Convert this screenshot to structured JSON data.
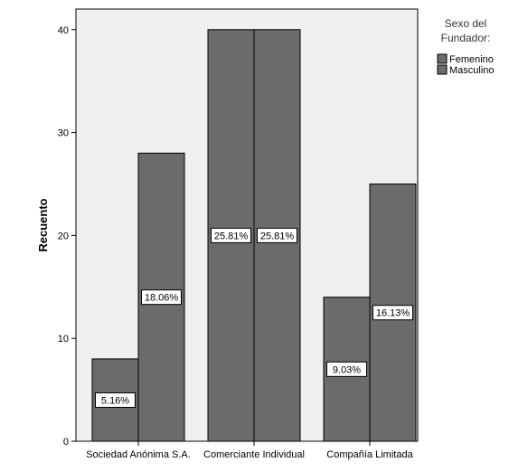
{
  "chart_data": {
    "type": "bar",
    "categories": [
      "Sociedad Anónima S.A.",
      "Comerciante Individual",
      "Compañía Limitada"
    ],
    "series": [
      {
        "name": "Femenino",
        "values": [
          8,
          40,
          14
        ],
        "labels": [
          "5.16%",
          "25.81%",
          "9.03%"
        ]
      },
      {
        "name": "Masculino",
        "values": [
          28,
          40,
          25
        ],
        "labels": [
          "18.06%",
          "25.81%",
          "16.13%"
        ]
      }
    ],
    "ylabel": "Recuento",
    "xlabel": "",
    "ylim": [
      0,
      42
    ],
    "yticks": [
      0,
      10,
      20,
      30,
      40
    ],
    "legend": {
      "title_lines": [
        "Sexo del",
        "Fundador:"
      ],
      "placement": "right-top"
    },
    "grid": false,
    "colors": {
      "plot_bg": "#f0f0f0",
      "bar_fill": "#6b6b6b",
      "bar_stroke": "#000000"
    }
  }
}
